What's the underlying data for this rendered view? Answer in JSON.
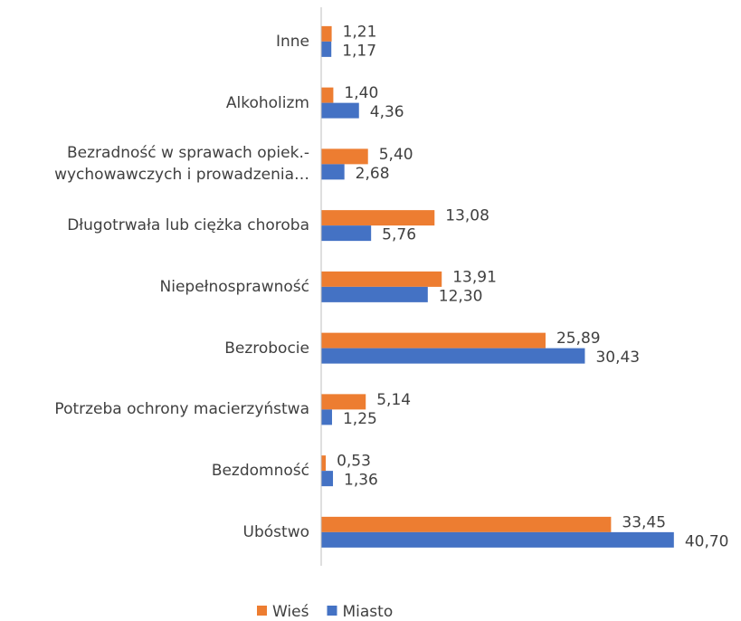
{
  "chart_data": {
    "type": "hbar",
    "categories": [
      "Inne",
      "Alkoholizm",
      "Bezradność w sprawach opiek.-\nwychowawczych i prowadzenia…",
      "Długotrwała lub ciężka choroba",
      "Niepełnosprawność",
      "Bezrobocie",
      "Potrzeba ochrony macierzyństwa",
      "Bezdomność",
      "Ubóstwo"
    ],
    "series": [
      {
        "name": "Wieś",
        "color": "#ed7d31",
        "values": [
          1.21,
          1.4,
          5.4,
          13.08,
          13.91,
          25.89,
          5.14,
          0.53,
          33.45
        ],
        "value_labels": [
          "1,21",
          "1,40",
          "5,40",
          "13,08",
          "13,91",
          "25,89",
          "5,14",
          "0,53",
          "33,45"
        ]
      },
      {
        "name": "Miasto",
        "color": "#4472c4",
        "values": [
          1.17,
          4.36,
          2.68,
          5.76,
          12.3,
          30.43,
          1.25,
          1.36,
          40.7
        ],
        "value_labels": [
          "1,17",
          "4,36",
          "2,68",
          "5,76",
          "12,30",
          "30,43",
          "1,25",
          "1,36",
          "40,70"
        ]
      }
    ],
    "xlim": [
      0,
      45
    ],
    "legend": "bottom"
  }
}
